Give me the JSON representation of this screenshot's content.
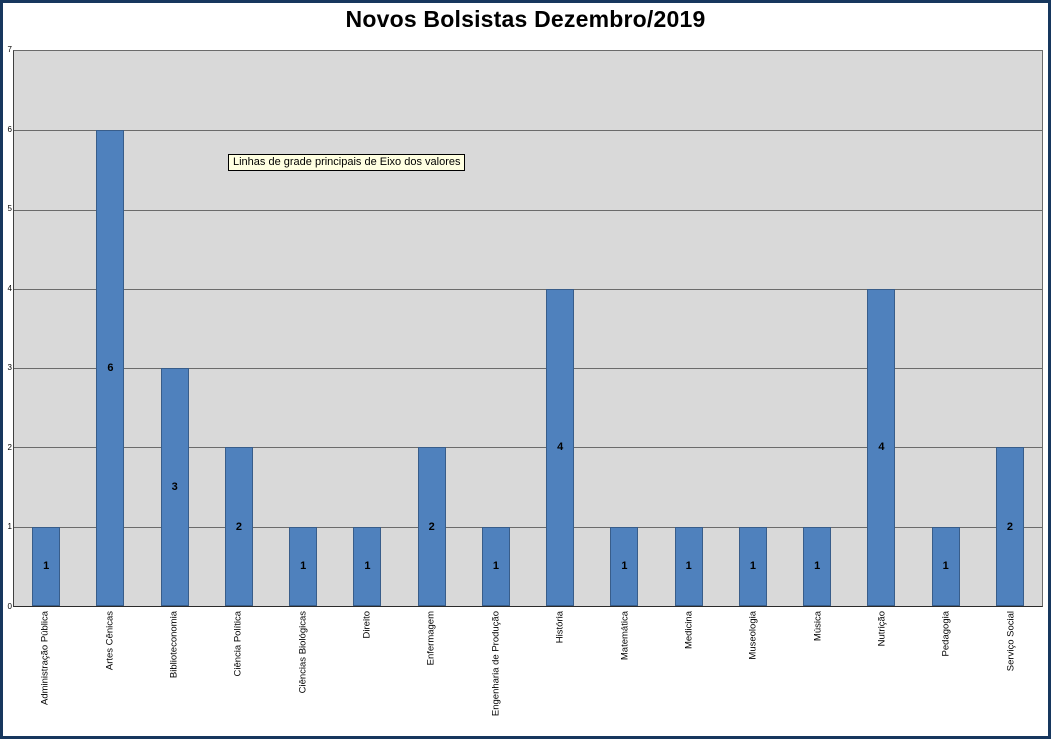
{
  "title": "Novos Bolsistas Dezembro/2019",
  "tooltip": "Linhas de grade principais de Eixo dos valores",
  "chart_data": {
    "type": "bar",
    "title": "Novos Bolsistas Dezembro/2019",
    "xlabel": "",
    "ylabel": "",
    "categories": [
      "Administração Pública",
      "Artes Cênicas",
      "Biblioteconomia",
      "Ciência Política",
      "Ciências Biológicas",
      "Direito",
      "Enfermagem",
      "Engenharia de Produção",
      "História",
      "Matemática",
      "Medicina",
      "Museologia",
      "Música",
      "Nutrição",
      "Pedagogia",
      "Serviço Social"
    ],
    "values": [
      1,
      6,
      3,
      2,
      1,
      1,
      2,
      1,
      4,
      1,
      1,
      1,
      1,
      4,
      1,
      2
    ],
    "y_ticks": [
      0,
      1,
      2,
      3,
      4,
      5,
      6,
      7
    ],
    "ylim": [
      0,
      7
    ],
    "data_labels": true,
    "grid": true,
    "legend": "none",
    "colors": {
      "bar_fill": "#4F81BD",
      "bar_border": "#385D8A",
      "plot_bg": "#D9D9D9",
      "grid_line": "#6B6B6B",
      "chart_border": "#17375E",
      "tooltip_bg": "#FFFFE1"
    }
  }
}
